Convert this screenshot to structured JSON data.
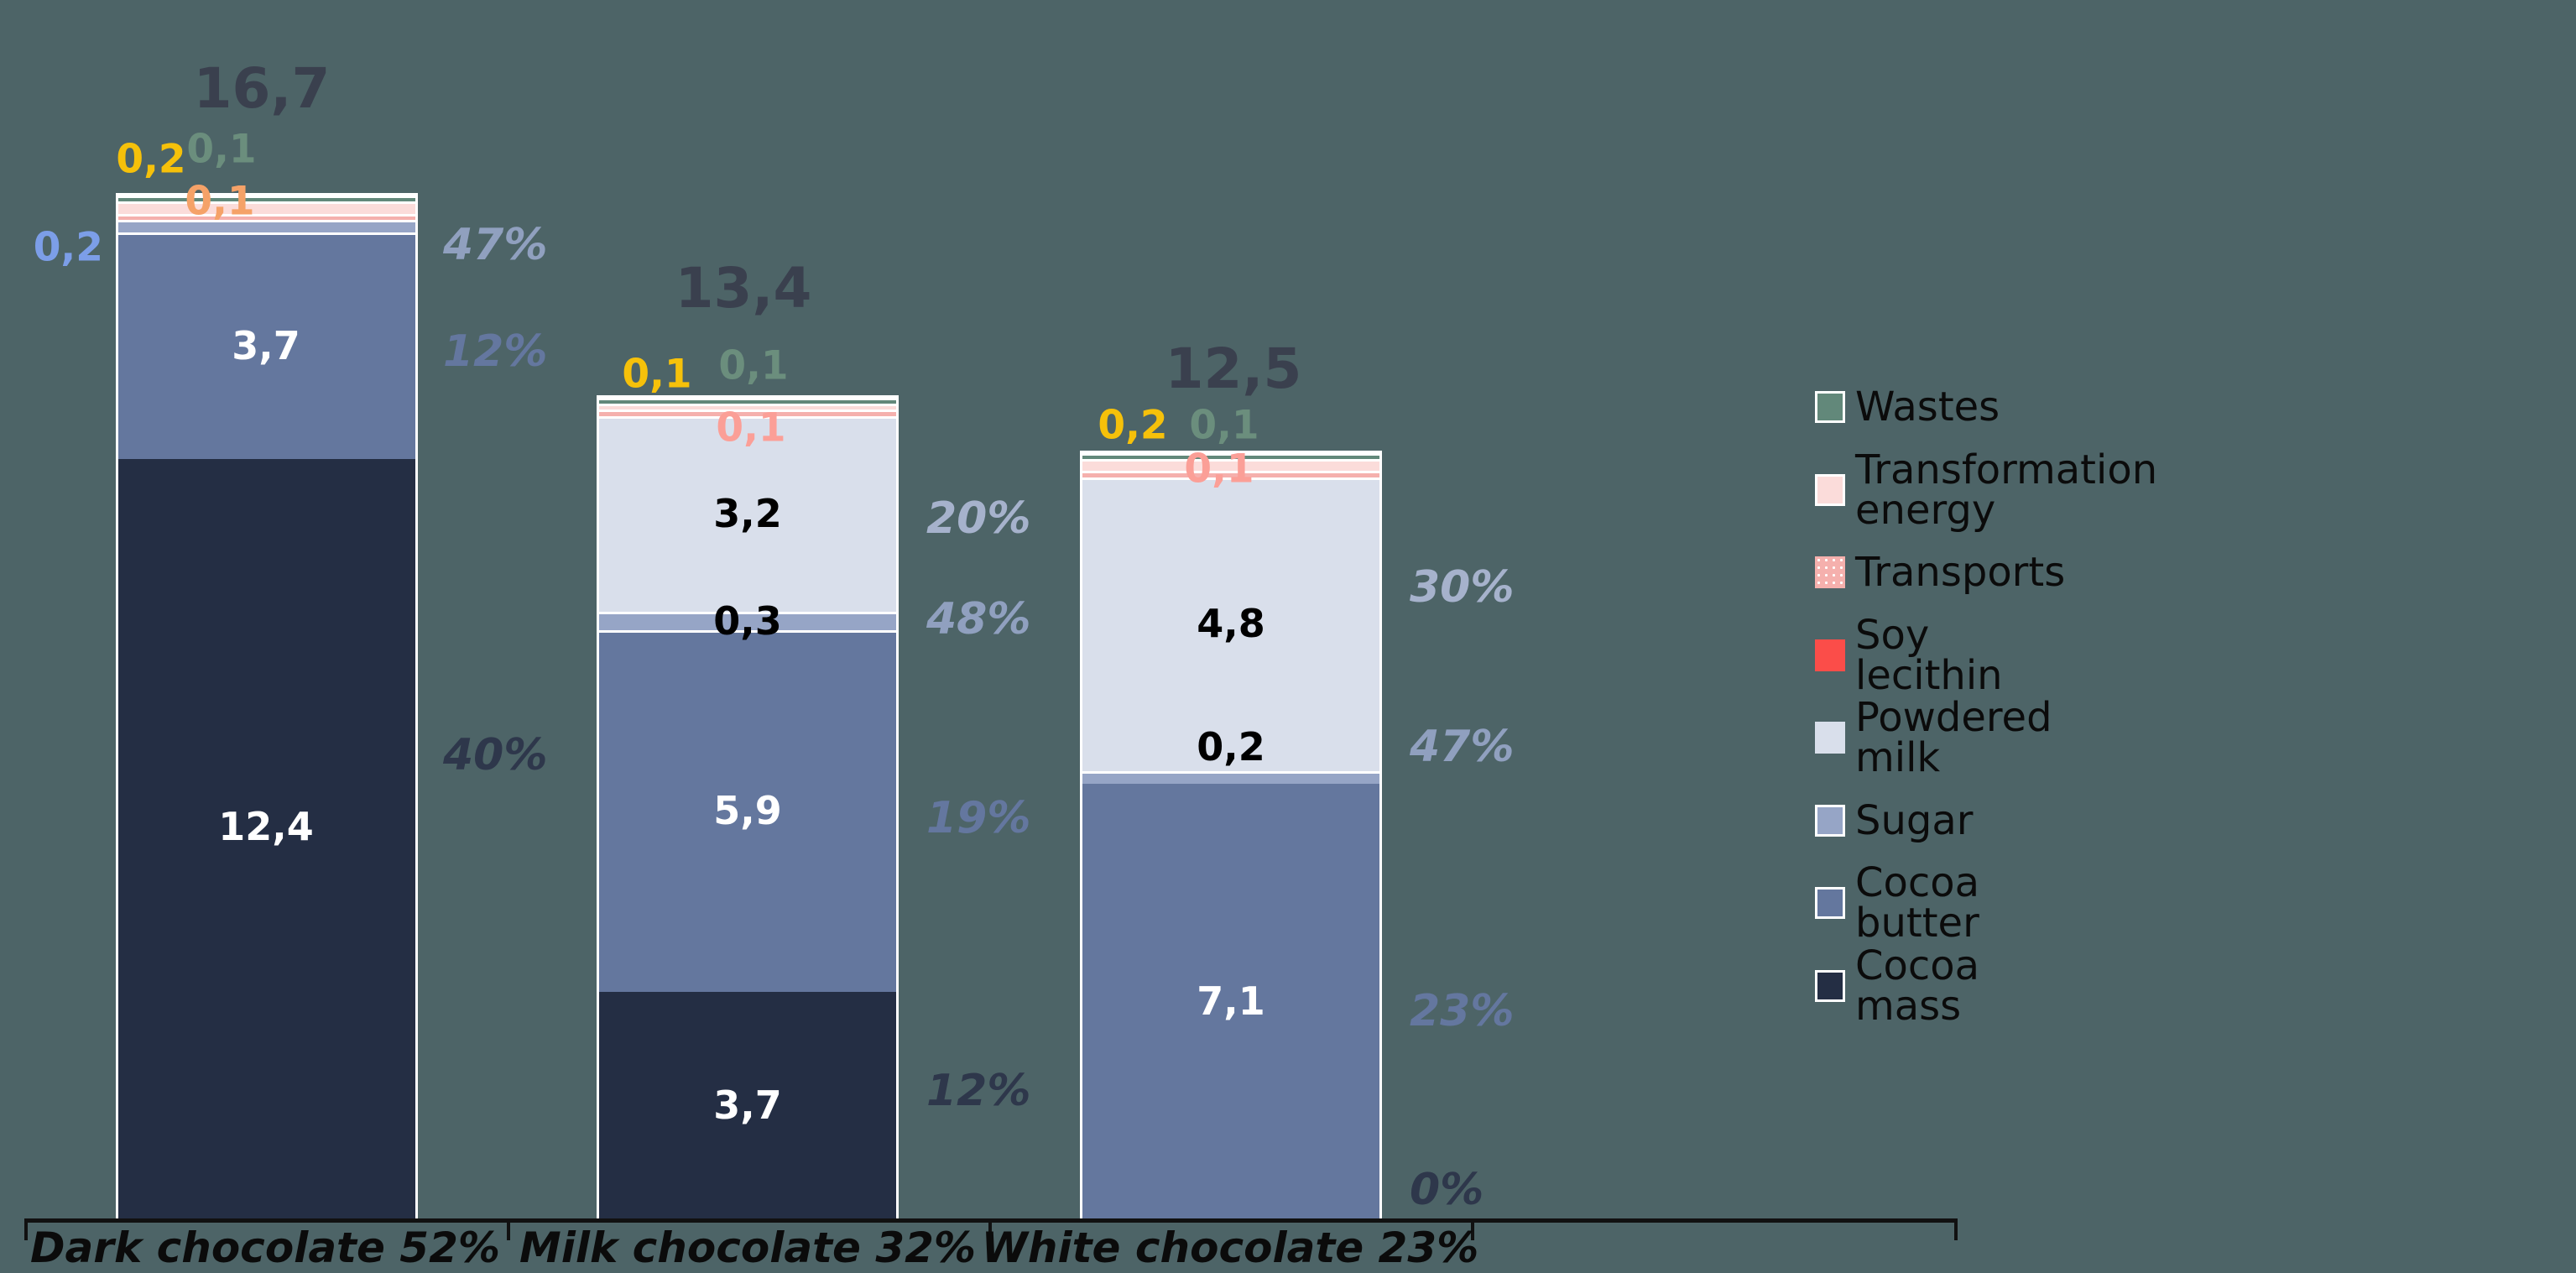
{
  "background_color": "#4D6467",
  "chart_data": {
    "type": "bar",
    "stacked": true,
    "grid": false,
    "legend_position": "right",
    "value_decimal_separator": ",",
    "categories": [
      "Dark chocolate 52%",
      "Milk chocolate 32%",
      "White chocolate 23%"
    ],
    "totals": [
      "16,7",
      "13,4",
      "12,5"
    ],
    "totals_color": "#3A404E",
    "axis_color": "#111111",
    "series_order_bottom_to_top": [
      "cocoa_mass",
      "cocoa_butter",
      "sugar",
      "powdered_milk",
      "soy_lecithin",
      "transports",
      "transformation_energy",
      "wastes"
    ],
    "legend_order_top_to_bottom": [
      "wastes",
      "transformation_energy",
      "transports",
      "soy_lecithin",
      "powdered_milk",
      "sugar",
      "cocoa_butter",
      "cocoa_mass"
    ],
    "series": {
      "cocoa_mass": {
        "label": "Cocoa mass",
        "color": "#242E44",
        "inside_text_color": "#FFFFFF",
        "pct_color": "#2E374B",
        "swatch_border": true
      },
      "cocoa_butter": {
        "label": "Cocoa butter",
        "color": "#64779E",
        "inside_text_color": "#FFFFFF",
        "pct_color": "#64779F",
        "swatch_border": true
      },
      "sugar": {
        "label": "Sugar",
        "color": "#96A5C6",
        "inside_text_color": "#000000",
        "pct_color": "#90A0BF",
        "swatch_border": true
      },
      "powdered_milk": {
        "label": "Powdered milk",
        "color": "#D9DFEB",
        "inside_text_color": "#000000",
        "pct_color": "#A6B2CC",
        "swatch_border": false
      },
      "soy_lecithin": {
        "label": "Soy lecithin",
        "color": "#FB4D49",
        "swatch_border": false
      },
      "transports": {
        "label": "Transports",
        "color": "#F5B0AD",
        "swatch_border": false,
        "swatch_dotted": true
      },
      "transformation_energy": {
        "label": "Transformation energy",
        "color": "#FBDCDA",
        "swatch_border": true
      },
      "wastes": {
        "label": "Wastes",
        "color": "#62887A",
        "swatch_border": true
      }
    },
    "bars": [
      {
        "category": "Dark chocolate 52%",
        "total_label": "16,7",
        "values": {
          "cocoa_mass": 12.4,
          "cocoa_butter": 3.7,
          "sugar": 0.2,
          "powdered_milk": 0,
          "soy_lecithin": 0,
          "transports": 0.1,
          "transformation_energy": 0.2,
          "wastes": 0.1
        },
        "segment_labels": {
          "cocoa_mass": "12,4",
          "cocoa_butter": "3,7"
        },
        "float_labels": [
          {
            "series": "sugar",
            "text": "0,2",
            "color": "#7C9EE8"
          },
          {
            "series": "transports",
            "text": "0,1",
            "color": "#F5A268"
          },
          {
            "series": "transformation_energy",
            "text": "0,2",
            "color": "#F6C10A"
          },
          {
            "series": "wastes",
            "text": "0,1",
            "color": "#6B8E7D"
          }
        ],
        "percents": [
          {
            "series": "sugar",
            "text": "47%"
          },
          {
            "series": "cocoa_butter",
            "text": "12%"
          },
          {
            "series": "cocoa_mass",
            "text": "40%"
          }
        ]
      },
      {
        "category": "Milk chocolate 32%",
        "total_label": "13,4",
        "values": {
          "cocoa_mass": 3.7,
          "cocoa_butter": 5.9,
          "sugar": 0.3,
          "powdered_milk": 3.2,
          "soy_lecithin": 0,
          "transports": 0.1,
          "transformation_energy": 0.1,
          "wastes": 0.1
        },
        "segment_labels": {
          "cocoa_mass": "3,7",
          "cocoa_butter": "5,9",
          "sugar": "0,3",
          "powdered_milk": "3,2"
        },
        "float_labels": [
          {
            "series": "transports",
            "text": "0,1",
            "color": "#FB9F97"
          },
          {
            "series": "transformation_energy",
            "text": "0,1",
            "color": "#F6C10A"
          },
          {
            "series": "wastes",
            "text": "0,1",
            "color": "#6B8E7D"
          }
        ],
        "percents": [
          {
            "series": "powdered_milk",
            "text": "20%"
          },
          {
            "series": "sugar",
            "text": "48%"
          },
          {
            "series": "cocoa_butter",
            "text": "19%"
          },
          {
            "series": "cocoa_mass",
            "text": "12%"
          }
        ]
      },
      {
        "category": "White chocolate 23%",
        "total_label": "12,5",
        "values": {
          "cocoa_mass": 0,
          "cocoa_butter": 7.1,
          "sugar": 0.2,
          "powdered_milk": 4.8,
          "soy_lecithin": 0,
          "transports": 0.1,
          "transformation_energy": 0.2,
          "wastes": 0.1
        },
        "segment_labels": {
          "cocoa_butter": "7,1",
          "sugar": "0,2",
          "powdered_milk": "4,8"
        },
        "float_labels": [
          {
            "series": "transports",
            "text": "0,1",
            "color": "#FB9F97"
          },
          {
            "series": "transformation_energy",
            "text": "0,2",
            "color": "#F6C10A"
          },
          {
            "series": "wastes",
            "text": "0,1",
            "color": "#6B8E7D"
          }
        ],
        "percents": [
          {
            "series": "powdered_milk",
            "text": "30%"
          },
          {
            "series": "sugar",
            "text": "47%"
          },
          {
            "series": "cocoa_butter",
            "text": "23%"
          },
          {
            "series": "cocoa_mass",
            "text": "0%"
          }
        ]
      }
    ]
  }
}
